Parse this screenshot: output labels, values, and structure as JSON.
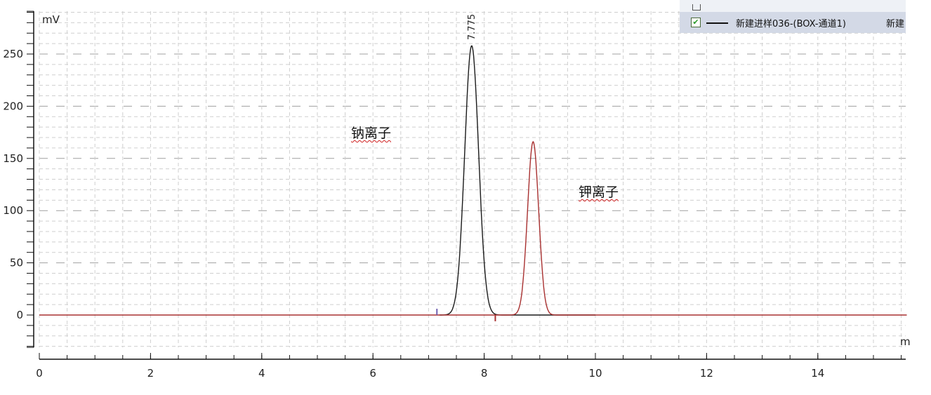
{
  "chart_data": {
    "type": "line",
    "ylabel": "mV",
    "xlabel": "m",
    "xlim": [
      0,
      15.6
    ],
    "ylim": [
      -31,
      291
    ],
    "x_ticks": [
      0,
      2,
      4,
      6,
      8,
      10,
      12,
      14
    ],
    "y_ticks": [
      0,
      50,
      100,
      150,
      200,
      250
    ],
    "grid": true,
    "series": [
      {
        "color": "#1a1a1a",
        "x_range": [
          7.2,
          10.0
        ],
        "peak": {
          "x": 7.775,
          "y": 258,
          "sigma": 0.125
        },
        "baseline": 0
      },
      {
        "color": "#a83030",
        "x_range": [
          0,
          15.6
        ],
        "peak": {
          "x": 8.88,
          "y": 166,
          "sigma": 0.1
        },
        "baseline": 0
      }
    ],
    "peak_labels": [
      "7.775"
    ],
    "annotations": [
      "钠离子",
      "钾离子"
    ],
    "markers": [
      {
        "x": 7.15,
        "color": "#7060b0"
      },
      {
        "x": 8.2,
        "color": "#a83030"
      }
    ]
  },
  "legend": {
    "entry_label": "新建进样036-(BOX-通道1)",
    "entry_label_cut": "新建",
    "checked": true
  }
}
